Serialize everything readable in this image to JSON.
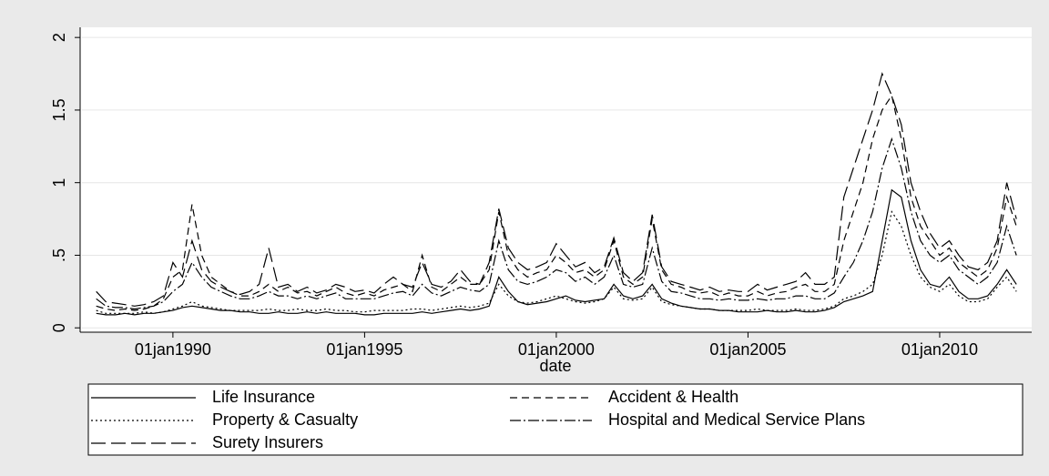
{
  "chart_data": {
    "type": "line",
    "x_label": "date",
    "x": [
      1988,
      1988.25,
      1988.5,
      1988.75,
      1989,
      1989.25,
      1989.5,
      1989.75,
      1990,
      1990.25,
      1990.5,
      1990.75,
      1991,
      1991.25,
      1991.5,
      1991.75,
      1992,
      1992.25,
      1992.5,
      1992.75,
      1993,
      1993.25,
      1993.5,
      1993.75,
      1994,
      1994.25,
      1994.5,
      1994.75,
      1995,
      1995.25,
      1995.5,
      1995.75,
      1996,
      1996.25,
      1996.5,
      1996.75,
      1997,
      1997.25,
      1997.5,
      1997.75,
      1998,
      1998.25,
      1998.5,
      1998.75,
      1999,
      1999.25,
      1999.5,
      1999.75,
      2000,
      2000.25,
      2000.5,
      2000.75,
      2001,
      2001.25,
      2001.5,
      2001.75,
      2002,
      2002.25,
      2002.5,
      2002.75,
      2003,
      2003.25,
      2003.5,
      2003.75,
      2004,
      2004.25,
      2004.5,
      2004.75,
      2005,
      2005.25,
      2005.5,
      2005.75,
      2006,
      2006.25,
      2006.5,
      2006.75,
      2007,
      2007.25,
      2007.5,
      2007.75,
      2008,
      2008.25,
      2008.5,
      2008.75,
      2009,
      2009.25,
      2009.5,
      2009.75,
      2010,
      2010.25,
      2010.5,
      2010.75,
      2011,
      2011.25,
      2011.5,
      2011.75,
      2012
    ],
    "series": [
      {
        "name": "Life Insurance",
        "color": "#000000",
        "dash": "none",
        "values": [
          0.1,
          0.09,
          0.09,
          0.1,
          0.09,
          0.1,
          0.1,
          0.11,
          0.12,
          0.14,
          0.15,
          0.14,
          0.13,
          0.12,
          0.12,
          0.11,
          0.11,
          0.1,
          0.1,
          0.11,
          0.1,
          0.1,
          0.11,
          0.1,
          0.11,
          0.1,
          0.1,
          0.1,
          0.09,
          0.09,
          0.1,
          0.1,
          0.1,
          0.1,
          0.11,
          0.1,
          0.11,
          0.12,
          0.13,
          0.12,
          0.13,
          0.15,
          0.35,
          0.25,
          0.18,
          0.16,
          0.17,
          0.18,
          0.2,
          0.22,
          0.19,
          0.18,
          0.19,
          0.2,
          0.3,
          0.22,
          0.2,
          0.22,
          0.3,
          0.2,
          0.17,
          0.15,
          0.14,
          0.13,
          0.13,
          0.12,
          0.12,
          0.11,
          0.11,
          0.11,
          0.12,
          0.11,
          0.11,
          0.12,
          0.11,
          0.11,
          0.12,
          0.14,
          0.18,
          0.2,
          0.22,
          0.25,
          0.6,
          0.95,
          0.9,
          0.6,
          0.4,
          0.3,
          0.28,
          0.35,
          0.25,
          0.2,
          0.2,
          0.22,
          0.3,
          0.4,
          0.3
        ]
      },
      {
        "name": "Accident & Health",
        "color": "#000000",
        "dash": "8,5",
        "values": [
          0.15,
          0.13,
          0.12,
          0.13,
          0.12,
          0.13,
          0.15,
          0.2,
          0.35,
          0.4,
          0.85,
          0.5,
          0.35,
          0.3,
          0.25,
          0.22,
          0.22,
          0.25,
          0.3,
          0.25,
          0.28,
          0.24,
          0.25,
          0.22,
          0.25,
          0.28,
          0.24,
          0.22,
          0.24,
          0.22,
          0.26,
          0.28,
          0.3,
          0.25,
          0.5,
          0.28,
          0.25,
          0.3,
          0.35,
          0.3,
          0.3,
          0.4,
          0.8,
          0.5,
          0.4,
          0.35,
          0.38,
          0.4,
          0.5,
          0.45,
          0.38,
          0.4,
          0.35,
          0.4,
          0.6,
          0.35,
          0.3,
          0.35,
          0.75,
          0.4,
          0.3,
          0.28,
          0.25,
          0.24,
          0.25,
          0.22,
          0.24,
          0.22,
          0.22,
          0.25,
          0.22,
          0.24,
          0.25,
          0.28,
          0.3,
          0.25,
          0.25,
          0.3,
          0.6,
          0.8,
          1.0,
          1.3,
          1.5,
          1.6,
          1.3,
          0.9,
          0.7,
          0.6,
          0.5,
          0.55,
          0.45,
          0.4,
          0.35,
          0.4,
          0.55,
          0.9,
          0.7
        ]
      },
      {
        "name": "Property & Casualty",
        "color": "#000000",
        "dash": "2,3",
        "values": [
          0.12,
          0.1,
          0.1,
          0.1,
          0.1,
          0.11,
          0.1,
          0.11,
          0.13,
          0.15,
          0.18,
          0.15,
          0.14,
          0.13,
          0.12,
          0.12,
          0.12,
          0.12,
          0.13,
          0.12,
          0.12,
          0.13,
          0.12,
          0.12,
          0.13,
          0.12,
          0.12,
          0.11,
          0.11,
          0.12,
          0.12,
          0.12,
          0.12,
          0.13,
          0.13,
          0.12,
          0.13,
          0.14,
          0.15,
          0.14,
          0.15,
          0.17,
          0.3,
          0.22,
          0.18,
          0.17,
          0.18,
          0.2,
          0.22,
          0.2,
          0.18,
          0.17,
          0.18,
          0.2,
          0.28,
          0.2,
          0.19,
          0.2,
          0.28,
          0.18,
          0.16,
          0.15,
          0.14,
          0.13,
          0.13,
          0.12,
          0.12,
          0.12,
          0.12,
          0.13,
          0.12,
          0.12,
          0.12,
          0.13,
          0.12,
          0.12,
          0.13,
          0.15,
          0.2,
          0.22,
          0.25,
          0.3,
          0.5,
          0.8,
          0.7,
          0.5,
          0.35,
          0.28,
          0.25,
          0.3,
          0.22,
          0.18,
          0.18,
          0.2,
          0.28,
          0.35,
          0.25
        ]
      },
      {
        "name": "Hospital and Medical Service Plans",
        "color": "#000000",
        "dash": "12,3,2,3",
        "values": [
          0.2,
          0.15,
          0.14,
          0.14,
          0.13,
          0.14,
          0.15,
          0.18,
          0.25,
          0.3,
          0.45,
          0.35,
          0.28,
          0.25,
          0.22,
          0.2,
          0.2,
          0.22,
          0.25,
          0.22,
          0.22,
          0.2,
          0.22,
          0.2,
          0.22,
          0.24,
          0.2,
          0.2,
          0.2,
          0.2,
          0.22,
          0.24,
          0.25,
          0.22,
          0.3,
          0.24,
          0.22,
          0.25,
          0.28,
          0.26,
          0.25,
          0.3,
          0.6,
          0.4,
          0.32,
          0.3,
          0.32,
          0.35,
          0.4,
          0.38,
          0.32,
          0.35,
          0.3,
          0.35,
          0.5,
          0.3,
          0.28,
          0.3,
          0.55,
          0.32,
          0.25,
          0.24,
          0.22,
          0.2,
          0.2,
          0.19,
          0.2,
          0.19,
          0.19,
          0.2,
          0.19,
          0.2,
          0.2,
          0.22,
          0.22,
          0.2,
          0.2,
          0.24,
          0.35,
          0.45,
          0.6,
          0.8,
          1.1,
          1.3,
          1.1,
          0.8,
          0.6,
          0.5,
          0.45,
          0.5,
          0.4,
          0.35,
          0.3,
          0.35,
          0.45,
          0.7,
          0.5
        ]
      },
      {
        "name": "Surety Insurers",
        "color": "#000000",
        "dash": "16,6",
        "values": [
          0.25,
          0.18,
          0.17,
          0.16,
          0.15,
          0.16,
          0.18,
          0.22,
          0.45,
          0.35,
          0.6,
          0.4,
          0.32,
          0.28,
          0.25,
          0.23,
          0.25,
          0.3,
          0.55,
          0.28,
          0.3,
          0.25,
          0.28,
          0.24,
          0.26,
          0.3,
          0.28,
          0.25,
          0.26,
          0.24,
          0.3,
          0.35,
          0.3,
          0.28,
          0.45,
          0.3,
          0.28,
          0.32,
          0.4,
          0.32,
          0.3,
          0.45,
          0.82,
          0.55,
          0.45,
          0.4,
          0.42,
          0.45,
          0.58,
          0.5,
          0.42,
          0.45,
          0.38,
          0.42,
          0.62,
          0.38,
          0.32,
          0.38,
          0.78,
          0.42,
          0.32,
          0.3,
          0.28,
          0.26,
          0.28,
          0.25,
          0.26,
          0.25,
          0.25,
          0.3,
          0.26,
          0.28,
          0.3,
          0.32,
          0.38,
          0.3,
          0.3,
          0.35,
          0.9,
          1.1,
          1.3,
          1.5,
          1.75,
          1.6,
          1.4,
          1.0,
          0.8,
          0.65,
          0.55,
          0.6,
          0.5,
          0.42,
          0.4,
          0.45,
          0.6,
          1.0,
          0.75
        ]
      }
    ],
    "xlim": [
      1987.58,
      2012.4
    ],
    "xticks": [
      {
        "value": 1990,
        "label": "01jan1990"
      },
      {
        "value": 1995,
        "label": "01jan1995"
      },
      {
        "value": 2000,
        "label": "01jan2000"
      },
      {
        "value": 2005,
        "label": "01jan2005"
      },
      {
        "value": 2010,
        "label": "01jan2010"
      }
    ],
    "ylim": [
      -0.03,
      2.07
    ],
    "yticks": [
      0,
      {
        "value": 0.5,
        "label": ".5"
      },
      1,
      1.5,
      2
    ],
    "grid": true
  }
}
